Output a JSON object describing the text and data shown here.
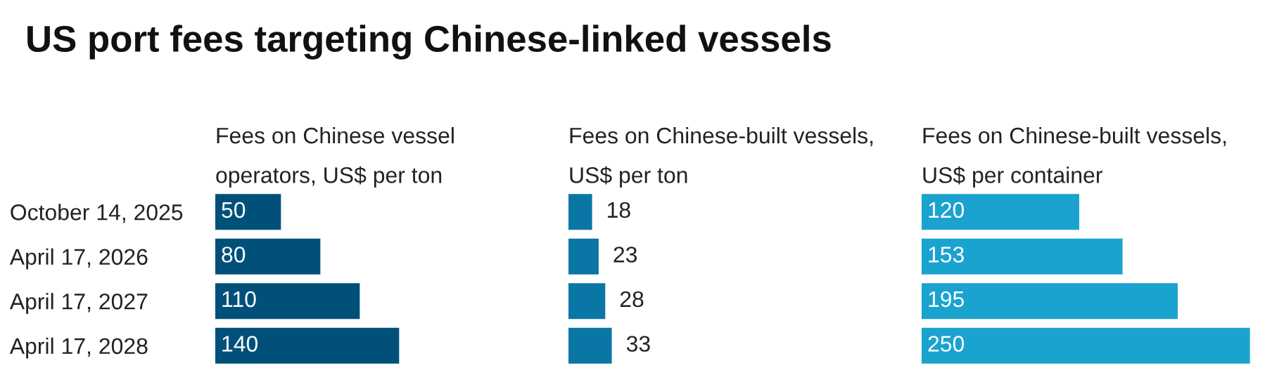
{
  "chart_data": [
    {
      "type": "bar",
      "orientation": "horizontal",
      "title": "US port fees targeting Chinese-linked vessels",
      "subtitle": "Fees on Chinese vessel\noperators, US$ per ton",
      "categories": [
        "October 14, 2025",
        "April 17, 2026",
        "April 17, 2027",
        "April 17, 2028"
      ],
      "values": [
        50,
        80,
        110,
        140
      ],
      "color": "#00507a",
      "data_labels": true,
      "tick_labels": "y"
    },
    {
      "type": "bar",
      "orientation": "horizontal",
      "subtitle": "Fees on Chinese-built vessels,\nUS$ per ton",
      "categories": [
        null,
        null,
        null,
        null
      ],
      "values": [
        18,
        23,
        28,
        33
      ],
      "color": "#0a76a6",
      "data_labels": true,
      "tick_labels": false
    },
    {
      "type": "bar",
      "orientation": "horizontal",
      "subtitle": "Fees on Chinese-built vessels,\nUS$ per container",
      "categories": [
        null,
        null,
        null,
        null
      ],
      "values": [
        120,
        153,
        195,
        250
      ],
      "color": "#1aa3cf",
      "data_labels": true,
      "tick_labels": false
    }
  ]
}
